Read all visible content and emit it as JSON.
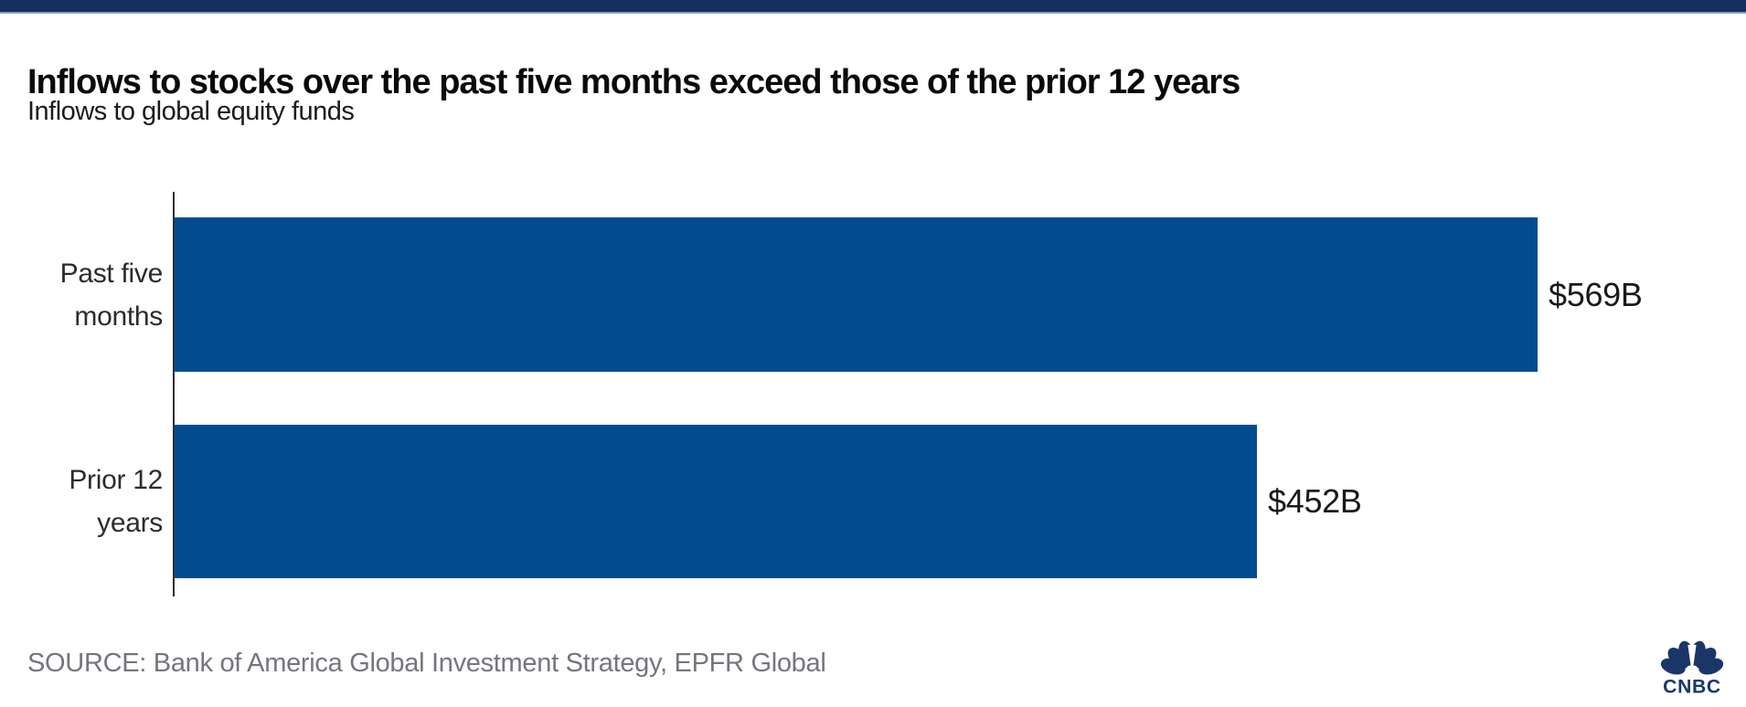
{
  "page": {
    "background": "#FFFFFF"
  },
  "top_bar": {
    "color": "#152F5E"
  },
  "header": {
    "title": "Inflows to stocks over the past five months exceed those of the prior 12 years",
    "subtitle": "Inflows to global equity funds"
  },
  "chart_data": {
    "type": "bar",
    "orientation": "horizontal",
    "title": "Inflows to stocks over the past five months exceed those of the prior 12 years",
    "subtitle": "Inflows to global equity funds",
    "categories": [
      "Past five months",
      "Prior 12 years"
    ],
    "category_label_lines": [
      [
        "Past five",
        "months"
      ],
      [
        "Prior 12",
        "years"
      ]
    ],
    "values": [
      569,
      452
    ],
    "value_labels": [
      "$569B",
      "$452B"
    ],
    "unit": "$ billions",
    "bar_color": "#034C8F",
    "axis_color": "#2F2F2F",
    "grid": false,
    "legend": false
  },
  "footer": {
    "source": "SOURCE: Bank of America Global Investment Strategy, EPFR Global"
  },
  "logo": {
    "brand": "CNBC",
    "color": "#1A3668"
  }
}
